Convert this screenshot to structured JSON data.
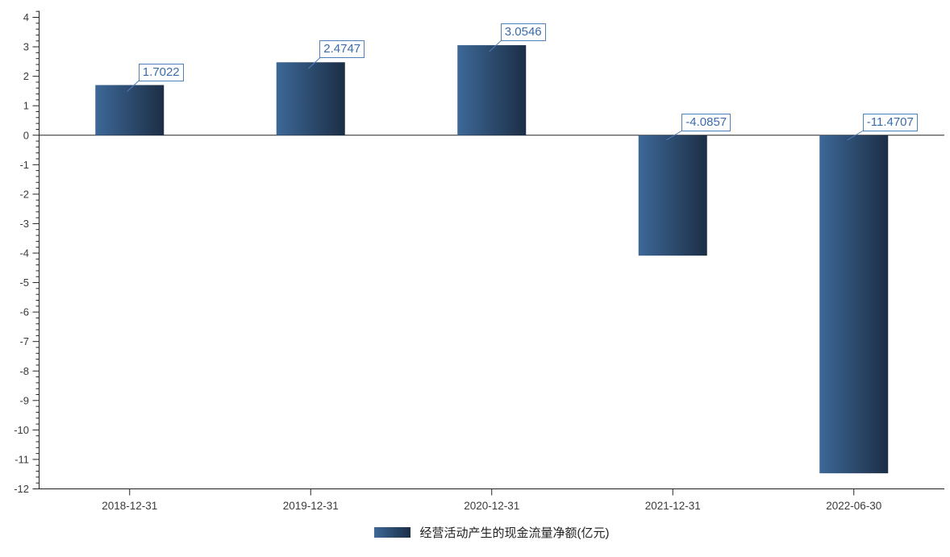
{
  "chart_data": {
    "type": "bar",
    "title": "",
    "categories": [
      "2018-12-31",
      "2019-12-31",
      "2020-12-31",
      "2021-12-31",
      "2022-06-30"
    ],
    "values": [
      1.7022,
      2.4747,
      3.0546,
      -4.0857,
      -11.4707
    ],
    "value_labels": [
      "1.7022",
      "2.4747",
      "3.0546",
      "-4.0857",
      "-11.4707"
    ],
    "legend": "经营活动产生的现金流量净额(亿元)",
    "xlabel": "",
    "ylabel": "",
    "ylim": [
      -12,
      4
    ],
    "y_ticks": [
      4,
      3,
      2,
      1,
      0,
      -1,
      -2,
      -3,
      -4,
      -5,
      -6,
      -7,
      -8,
      -9,
      -10,
      -11,
      -12
    ],
    "y_minor_step": 0.2,
    "grid": false,
    "legend_position": "bottom-center",
    "colors": {
      "bar_gradient_left": "#3d6897",
      "bar_gradient_right": "#1c2e46",
      "axis": "#222222",
      "tick_label": "#3a3a3a",
      "data_label_text": "#3a6cab",
      "data_label_border": "#4e7fba",
      "legend_text": "#222222",
      "background": "#ffffff"
    }
  }
}
